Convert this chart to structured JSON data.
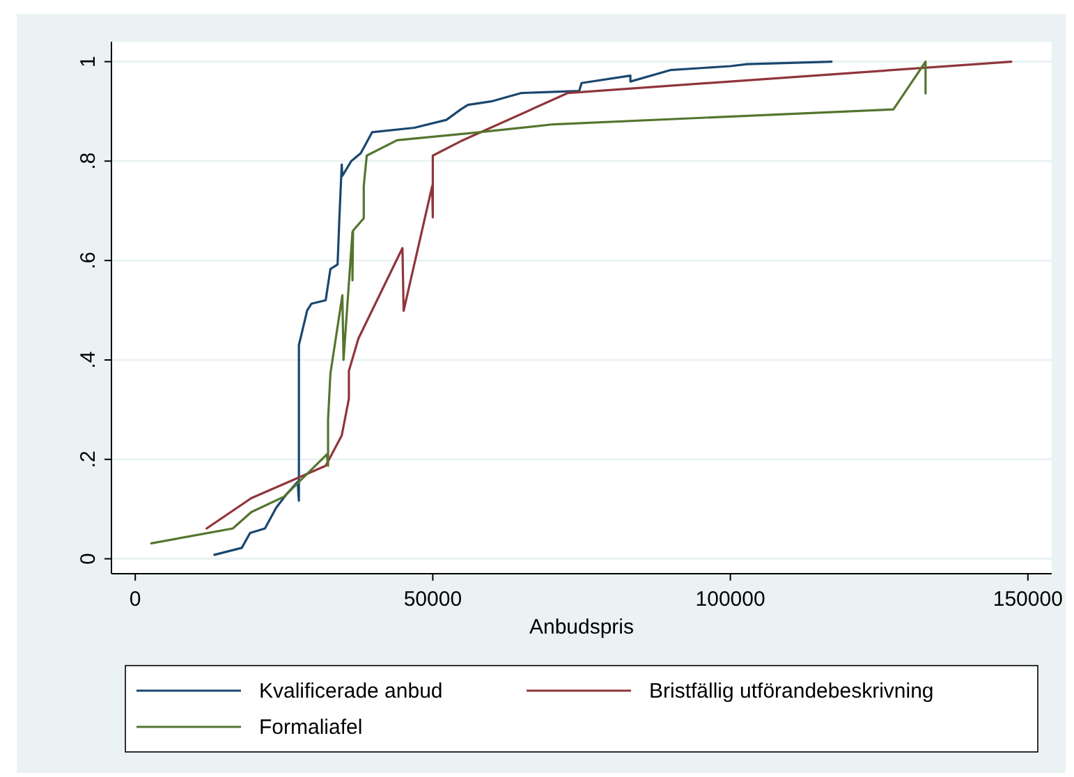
{
  "chart_data": {
    "type": "line",
    "xlabel": "Anbudspris",
    "xlim": [
      -4000,
      154000
    ],
    "xticks": [
      0,
      50000,
      100000,
      150000
    ],
    "ylim": [
      -0.03,
      1.04
    ],
    "yticks": [
      {
        "value": 0,
        "label": "0"
      },
      {
        "value": 0.2,
        "label": ".2"
      },
      {
        "value": 0.4,
        "label": ".4"
      },
      {
        "value": 0.6,
        "label": ".6"
      },
      {
        "value": 0.8,
        "label": ".8"
      },
      {
        "value": 1,
        "label": "1"
      }
    ],
    "grid": "y",
    "legend": "bottom",
    "marker": "none",
    "line_style": "solid",
    "series": [
      {
        "name": "Kvalificerade anbud",
        "color": "#1a476f",
        "x": [
          13300,
          17900,
          19300,
          21800,
          23700,
          25300,
          27300,
          27500,
          27500,
          28900,
          29600,
          32000,
          32800,
          34000,
          34300,
          34700,
          34800,
          36300,
          37900,
          39800,
          46900,
          52300,
          54700,
          55900,
          59800,
          64900,
          74600,
          75000,
          83200,
          83200,
          89900,
          100000,
          102800,
          117000
        ],
        "values": [
          0.008,
          0.022,
          0.052,
          0.061,
          0.103,
          0.128,
          0.155,
          0.117,
          0.43,
          0.5,
          0.513,
          0.52,
          0.583,
          0.592,
          0.685,
          0.793,
          0.77,
          0.8,
          0.816,
          0.858,
          0.867,
          0.883,
          0.904,
          0.913,
          0.92,
          0.937,
          0.941,
          0.957,
          0.972,
          0.96,
          0.983,
          0.991,
          0.995,
          1.0
        ]
      },
      {
        "name": "Bristfällig utförandebeskrivning",
        "color": "#90353b",
        "x": [
          12000,
          19500,
          32000,
          34700,
          35900,
          35900,
          37500,
          44900,
          45100,
          49900,
          50000,
          50000,
          54700,
          72700,
          147200
        ],
        "values": [
          0.061,
          0.122,
          0.187,
          0.248,
          0.322,
          0.378,
          0.443,
          0.625,
          0.499,
          0.75,
          0.687,
          0.811,
          0.84,
          0.937,
          1.0
        ]
      },
      {
        "name": "Formaliafel",
        "color": "#55752f",
        "x": [
          2700,
          16400,
          19500,
          25000,
          32200,
          32400,
          32400,
          32800,
          34800,
          35000,
          36500,
          36500,
          36600,
          38400,
          38400,
          38900,
          44000,
          57000,
          70300,
          127400,
          132800,
          132800
        ],
        "values": [
          0.031,
          0.061,
          0.094,
          0.125,
          0.21,
          0.187,
          0.28,
          0.373,
          0.53,
          0.4,
          0.657,
          0.56,
          0.66,
          0.685,
          0.75,
          0.811,
          0.842,
          0.857,
          0.874,
          0.904,
          1.0,
          0.936
        ]
      }
    ]
  }
}
